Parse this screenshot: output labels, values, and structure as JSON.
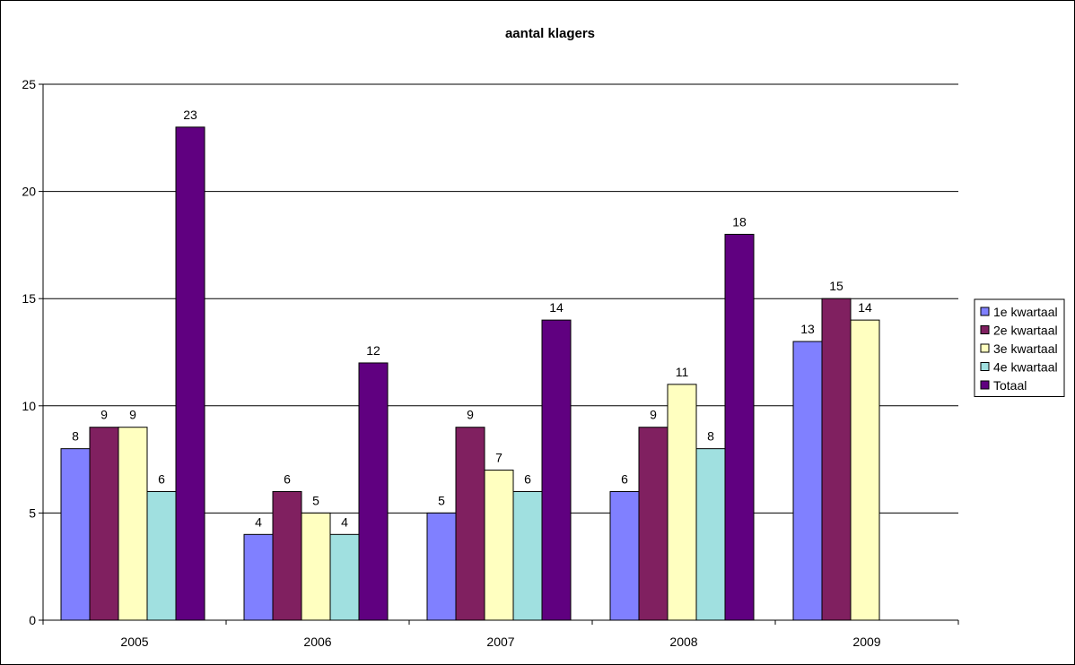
{
  "chart_data": {
    "type": "bar",
    "title": "aantal klagers",
    "xlabel": "",
    "ylabel": "",
    "categories": [
      "2005",
      "2006",
      "2007",
      "2008",
      "2009"
    ],
    "ylim": [
      0,
      25
    ],
    "yticks": [
      0,
      5,
      10,
      15,
      20,
      25
    ],
    "grid": true,
    "legend_position": "right",
    "data_labels": true,
    "series": [
      {
        "name": "1e kwartaal",
        "color": "#8080FF",
        "values": [
          8,
          4,
          5,
          6,
          13
        ]
      },
      {
        "name": "2e kwartaal",
        "color": "#802060",
        "values": [
          9,
          6,
          9,
          9,
          15
        ]
      },
      {
        "name": "3e kwartaal",
        "color": "#FFFFC0",
        "values": [
          9,
          5,
          7,
          11,
          14
        ]
      },
      {
        "name": "4e kwartaal",
        "color": "#A0E0E0",
        "values": [
          6,
          4,
          6,
          8,
          null
        ]
      },
      {
        "name": "Totaal",
        "color": "#600080",
        "values": [
          23,
          12,
          14,
          18,
          null
        ]
      }
    ]
  }
}
